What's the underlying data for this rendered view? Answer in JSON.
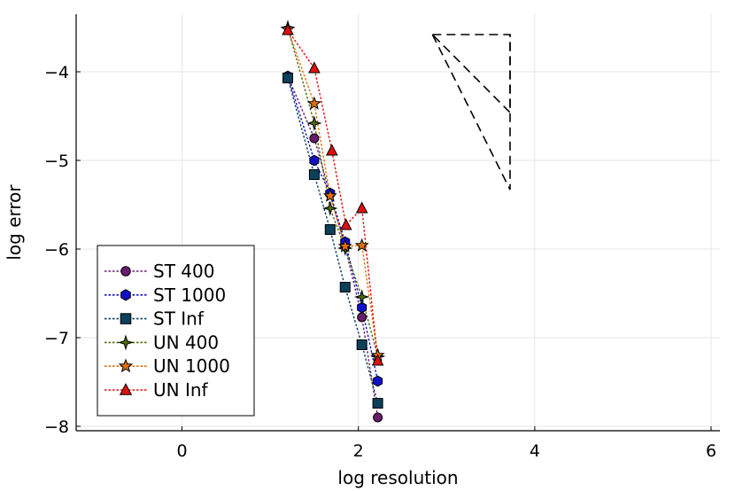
{
  "chart_data": {
    "type": "line",
    "title": "",
    "xlabel": "log resolution",
    "ylabel": "log error",
    "xlim": [
      -1.2,
      6.1
    ],
    "ylim": [
      -8.05,
      -3.35
    ],
    "xticks": [
      0,
      2,
      4,
      6
    ],
    "xtick_labels": [
      "0",
      "2",
      "4",
      "6"
    ],
    "yticks": [
      -4,
      -5,
      -6,
      -7,
      -8
    ],
    "ytick_labels": [
      "−4",
      "−5",
      "−6",
      "−7",
      "−8"
    ],
    "grid": true,
    "legend_position": "bottom-left",
    "series": [
      {
        "name": "ST 400",
        "color": "#6a1b6e",
        "marker": "circle",
        "x": [
          1.2,
          1.5,
          1.68,
          1.85,
          2.04,
          2.22
        ],
        "y": [
          -4.05,
          -4.75,
          -5.38,
          -5.97,
          -6.77,
          -7.9
        ]
      },
      {
        "name": "ST 1000",
        "color": "#1010c8",
        "marker": "hexagon",
        "x": [
          1.2,
          1.5,
          1.68,
          1.85,
          2.04,
          2.22
        ],
        "y": [
          -4.05,
          -5.0,
          -5.37,
          -5.92,
          -6.66,
          -7.49
        ]
      },
      {
        "name": "ST Inf",
        "color": "#0b3f5c",
        "marker": "square",
        "x": [
          1.2,
          1.5,
          1.68,
          1.85,
          2.04,
          2.22
        ],
        "y": [
          -4.07,
          -5.16,
          -5.78,
          -6.43,
          -7.08,
          -7.74
        ]
      },
      {
        "name": "UN 400",
        "color": "#4a6a0a",
        "marker": "star4",
        "x": [
          1.2,
          1.5,
          1.68,
          1.85,
          2.04,
          2.22
        ],
        "y": [
          -3.5,
          -4.58,
          -5.54,
          -5.99,
          -6.54,
          -7.21
        ]
      },
      {
        "name": "UN 1000",
        "color": "#e06e0a",
        "marker": "star5",
        "x": [
          1.2,
          1.5,
          1.68,
          1.85,
          2.04,
          2.22
        ],
        "y": [
          -3.52,
          -4.36,
          -5.4,
          -5.97,
          -5.96,
          -7.2
        ]
      },
      {
        "name": "UN Inf",
        "color": "#e01010",
        "marker": "triangle",
        "x": [
          1.2,
          1.5,
          1.7,
          1.86,
          2.04,
          2.22
        ],
        "y": [
          -3.53,
          -3.96,
          -4.89,
          -5.73,
          -5.54,
          -7.26
        ]
      }
    ],
    "reference_triangles": [
      {
        "x": [
          2.84,
          3.72,
          3.72,
          2.84
        ],
        "y": [
          -3.58,
          -3.58,
          -4.46,
          -3.58
        ]
      },
      {
        "x": [
          2.84,
          3.72,
          3.72
        ],
        "y": [
          -3.58,
          -5.33,
          -3.58
        ]
      }
    ]
  }
}
